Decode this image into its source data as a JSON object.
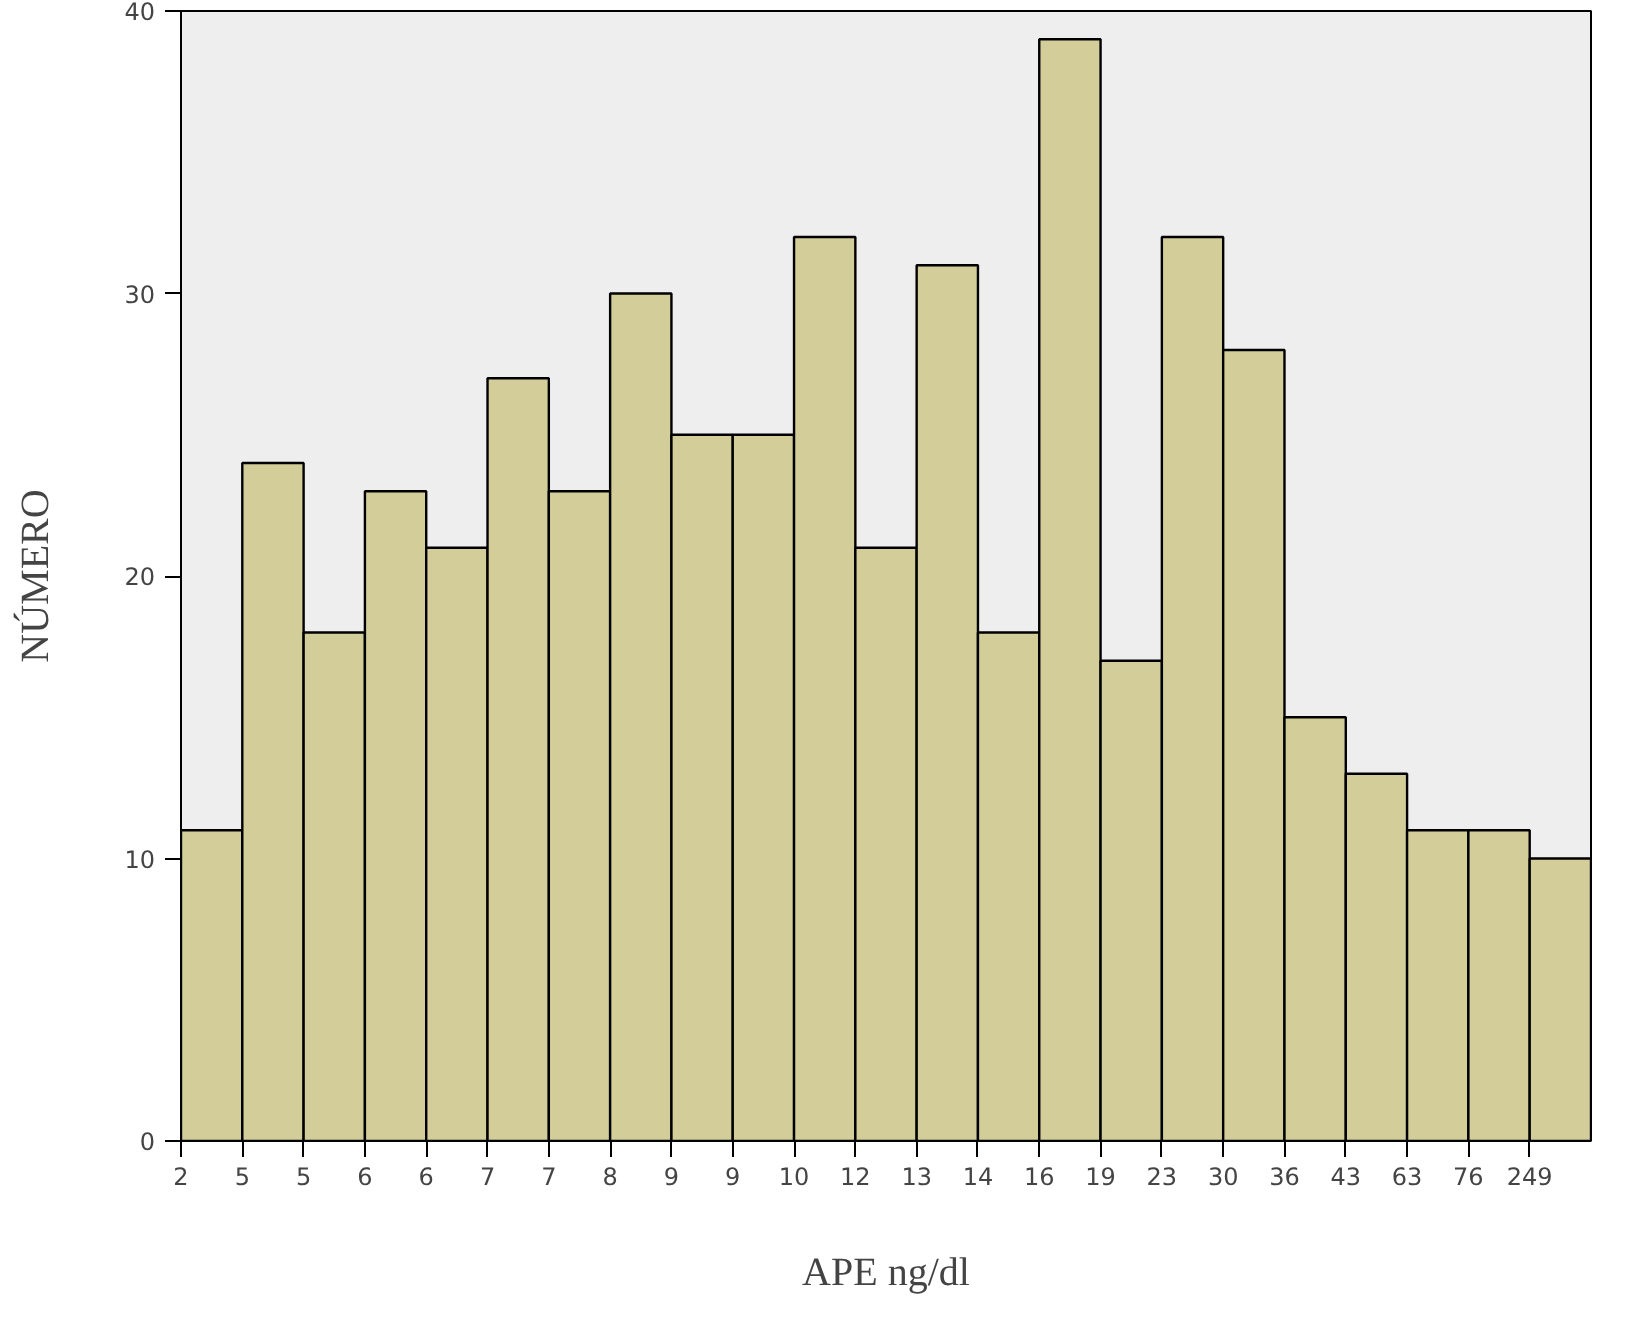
{
  "chart_data": {
    "type": "bar",
    "xlabel": "APE ng/dl",
    "ylabel": "NÚMERO",
    "categories": [
      "2",
      "5",
      "5",
      "6",
      "6",
      "7",
      "7",
      "8",
      "9",
      "9",
      "10",
      "12",
      "13",
      "14",
      "16",
      "19",
      "23",
      "30",
      "36",
      "43",
      "63",
      "76",
      "249"
    ],
    "values": [
      11,
      24,
      18,
      23,
      21,
      27,
      23,
      30,
      25,
      25,
      32,
      21,
      31,
      18,
      39,
      17,
      32,
      28,
      15,
      13,
      11,
      11,
      10
    ],
    "color": "#d3ce99",
    "ylim": [
      0,
      40
    ],
    "yticks": [
      0,
      10,
      20,
      30,
      40
    ],
    "grid": false
  }
}
